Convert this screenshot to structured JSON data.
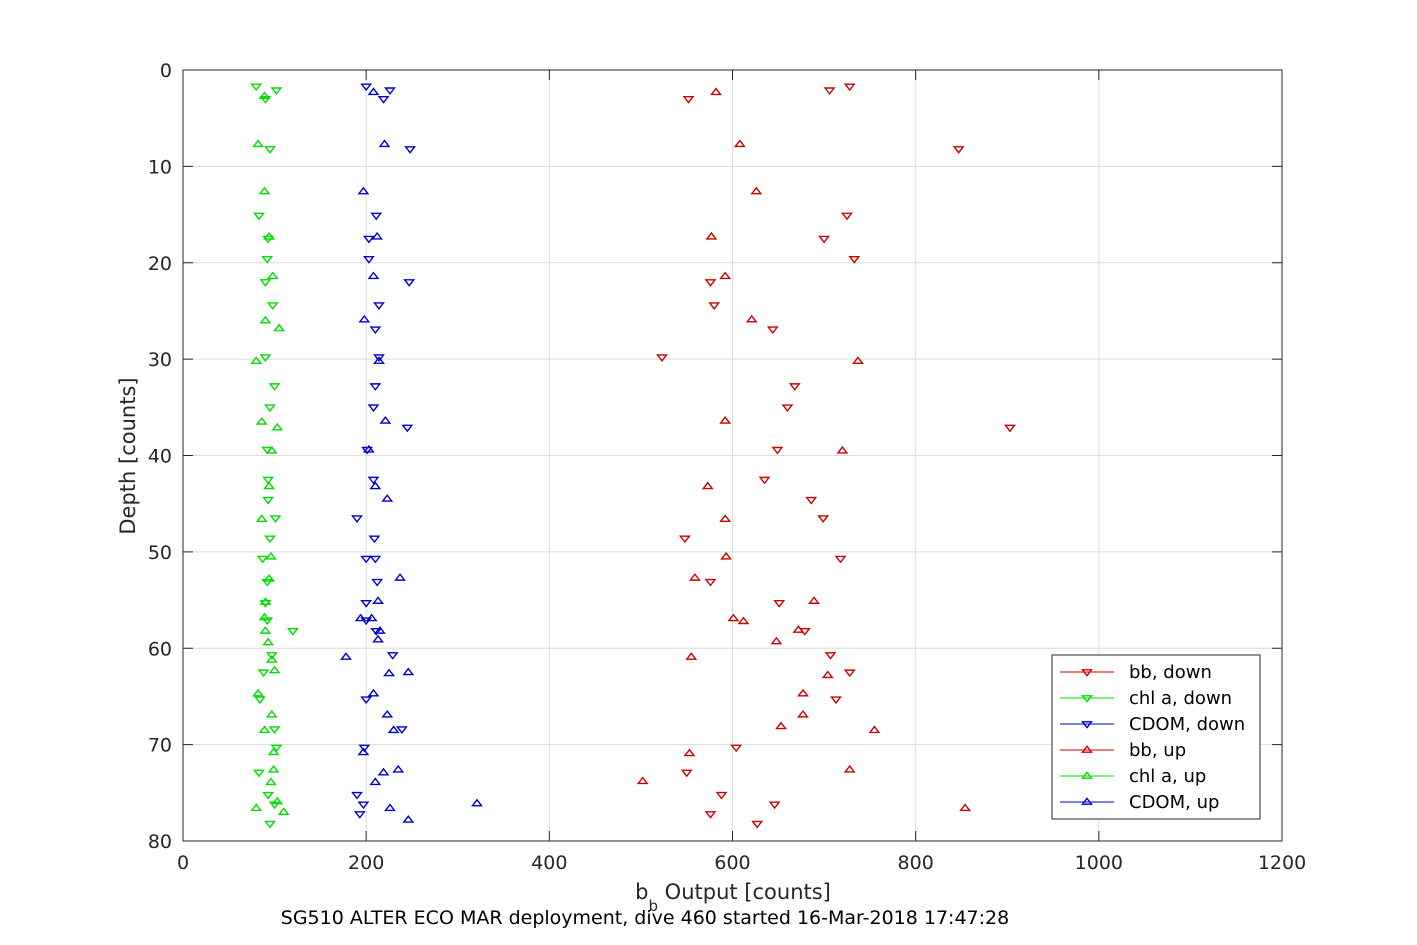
{
  "chart_data": {
    "type": "scatter",
    "title": "",
    "caption": "SG510 ALTER ECO MAR deployment, dive 460 started 16-Mar-2018 17:47:28",
    "xlabel_base": "b",
    "xlabel_sub": "b",
    "xlabel_rest": " Output [counts]",
    "ylabel": "Depth [counts]",
    "xlim": [
      0,
      1200
    ],
    "ylim": [
      0,
      80
    ],
    "y_reversed": true,
    "grid": true,
    "legend_position": "bottom-right",
    "xticks": [
      0,
      200,
      400,
      600,
      800,
      1000,
      1200
    ],
    "yticks": [
      0,
      10,
      20,
      30,
      40,
      50,
      60,
      70,
      80
    ],
    "series": [
      {
        "name": "bb, down",
        "color": "#cc0000",
        "marker": "triangle-down",
        "points": [
          [
            728,
            1.7
          ],
          [
            706,
            2.1
          ],
          [
            552,
            3.0
          ],
          [
            847,
            8.2
          ],
          [
            725,
            15.1
          ],
          [
            700,
            17.5
          ],
          [
            733,
            19.6
          ],
          [
            576,
            22.0
          ],
          [
            580,
            24.4
          ],
          [
            644,
            26.9
          ],
          [
            523,
            29.8
          ],
          [
            668,
            32.8
          ],
          [
            660,
            35.0
          ],
          [
            903,
            37.1
          ],
          [
            649,
            39.4
          ],
          [
            635,
            42.5
          ],
          [
            686,
            44.6
          ],
          [
            699,
            46.5
          ],
          [
            548,
            48.6
          ],
          [
            718,
            50.7
          ],
          [
            576,
            53.1
          ],
          [
            651,
            55.3
          ],
          [
            679,
            58.2
          ],
          [
            707,
            60.7
          ],
          [
            728,
            62.5
          ],
          [
            713,
            65.3
          ],
          [
            604,
            70.3
          ],
          [
            550,
            72.9
          ],
          [
            588,
            75.2
          ],
          [
            646,
            76.2
          ],
          [
            576,
            77.2
          ],
          [
            627,
            78.2
          ]
        ]
      },
      {
        "name": "chl a, down",
        "color": "#00dd00",
        "marker": "triangle-down",
        "points": [
          [
            80,
            1.7
          ],
          [
            102,
            2.1
          ],
          [
            90,
            3.0
          ],
          [
            95,
            8.2
          ],
          [
            83,
            15.1
          ],
          [
            93,
            17.5
          ],
          [
            92,
            19.6
          ],
          [
            90,
            22.0
          ],
          [
            98,
            24.4
          ],
          [
            90,
            29.8
          ],
          [
            100,
            32.8
          ],
          [
            95,
            35.0
          ],
          [
            92,
            39.4
          ],
          [
            93,
            42.5
          ],
          [
            93,
            44.6
          ],
          [
            101,
            46.5
          ],
          [
            95,
            48.6
          ],
          [
            87,
            50.7
          ],
          [
            92,
            53.1
          ],
          [
            90,
            55.3
          ],
          [
            92,
            57.1
          ],
          [
            120,
            58.2
          ],
          [
            97,
            60.7
          ],
          [
            88,
            62.5
          ],
          [
            84,
            65.3
          ],
          [
            100,
            68.4
          ],
          [
            102,
            70.3
          ],
          [
            83,
            72.9
          ],
          [
            93,
            75.2
          ],
          [
            100,
            76.2
          ],
          [
            95,
            78.2
          ]
        ]
      },
      {
        "name": "CDOM, down",
        "color": "#0000cc",
        "marker": "triangle-down",
        "points": [
          [
            200,
            1.7
          ],
          [
            226,
            2.1
          ],
          [
            219,
            3.0
          ],
          [
            248,
            8.2
          ],
          [
            211,
            15.1
          ],
          [
            203,
            17.5
          ],
          [
            203,
            19.6
          ],
          [
            247,
            22.0
          ],
          [
            214,
            24.4
          ],
          [
            210,
            26.9
          ],
          [
            214,
            29.8
          ],
          [
            210,
            32.8
          ],
          [
            208,
            35.0
          ],
          [
            245,
            37.1
          ],
          [
            201,
            39.4
          ],
          [
            208,
            42.5
          ],
          [
            190,
            46.5
          ],
          [
            209,
            48.6
          ],
          [
            210,
            50.7
          ],
          [
            200,
            50.7
          ],
          [
            212,
            53.1
          ],
          [
            200,
            55.3
          ],
          [
            200,
            57.1
          ],
          [
            211,
            58.2
          ],
          [
            229,
            60.7
          ],
          [
            200,
            65.3
          ],
          [
            239,
            68.4
          ],
          [
            198,
            70.3
          ],
          [
            190,
            75.2
          ],
          [
            197,
            76.2
          ],
          [
            193,
            77.2
          ]
        ]
      },
      {
        "name": "bb, up",
        "color": "#cc0000",
        "marker": "triangle-up",
        "points": [
          [
            582,
            2.3
          ],
          [
            608,
            7.7
          ],
          [
            626,
            12.6
          ],
          [
            577,
            17.3
          ],
          [
            592,
            21.4
          ],
          [
            621,
            25.9
          ],
          [
            737,
            30.2
          ],
          [
            592,
            36.4
          ],
          [
            720,
            39.5
          ],
          [
            573,
            43.2
          ],
          [
            592,
            46.6
          ],
          [
            593,
            50.5
          ],
          [
            559,
            52.7
          ],
          [
            689,
            55.1
          ],
          [
            601,
            56.9
          ],
          [
            612,
            57.2
          ],
          [
            672,
            58.1
          ],
          [
            648,
            59.3
          ],
          [
            555,
            60.9
          ],
          [
            704,
            62.8
          ],
          [
            677,
            64.7
          ],
          [
            677,
            66.9
          ],
          [
            653,
            68.1
          ],
          [
            755,
            68.5
          ],
          [
            553,
            70.9
          ],
          [
            728,
            72.6
          ],
          [
            502,
            73.8
          ],
          [
            854,
            76.6
          ]
        ]
      },
      {
        "name": "chl a, up",
        "color": "#00dd00",
        "marker": "triangle-up",
        "points": [
          [
            89,
            2.7
          ],
          [
            82,
            7.7
          ],
          [
            89,
            12.6
          ],
          [
            94,
            17.3
          ],
          [
            98,
            21.4
          ],
          [
            90,
            26.0
          ],
          [
            105,
            26.8
          ],
          [
            80,
            30.2
          ],
          [
            103,
            37.1
          ],
          [
            86,
            36.5
          ],
          [
            97,
            39.5
          ],
          [
            94,
            43.2
          ],
          [
            86,
            46.6
          ],
          [
            96,
            50.5
          ],
          [
            94,
            52.8
          ],
          [
            90,
            55.2
          ],
          [
            89,
            56.8
          ],
          [
            90,
            58.2
          ],
          [
            93,
            59.4
          ],
          [
            97,
            61.2
          ],
          [
            100,
            62.3
          ],
          [
            82,
            64.7
          ],
          [
            97,
            66.9
          ],
          [
            89,
            68.5
          ],
          [
            99,
            70.8
          ],
          [
            99,
            72.6
          ],
          [
            96,
            73.9
          ],
          [
            103,
            75.9
          ],
          [
            80,
            76.6
          ],
          [
            110,
            77.0
          ]
        ]
      },
      {
        "name": "CDOM, up",
        "color": "#0000cc",
        "marker": "triangle-up",
        "points": [
          [
            208,
            2.3
          ],
          [
            220,
            7.7
          ],
          [
            197,
            12.6
          ],
          [
            212,
            17.3
          ],
          [
            208,
            21.4
          ],
          [
            198,
            25.9
          ],
          [
            214,
            30.2
          ],
          [
            221,
            36.4
          ],
          [
            203,
            39.4
          ],
          [
            210,
            43.2
          ],
          [
            223,
            44.5
          ],
          [
            237,
            52.7
          ],
          [
            213,
            55.1
          ],
          [
            194,
            56.9
          ],
          [
            206,
            56.9
          ],
          [
            215,
            58.2
          ],
          [
            213,
            59.1
          ],
          [
            178,
            60.9
          ],
          [
            225,
            62.6
          ],
          [
            208,
            64.7
          ],
          [
            223,
            66.9
          ],
          [
            246,
            62.5
          ],
          [
            230,
            68.5
          ],
          [
            197,
            70.8
          ],
          [
            235,
            72.6
          ],
          [
            219,
            72.9
          ],
          [
            210,
            73.9
          ],
          [
            321,
            76.1
          ],
          [
            226,
            76.6
          ],
          [
            246,
            77.8
          ]
        ]
      }
    ]
  }
}
